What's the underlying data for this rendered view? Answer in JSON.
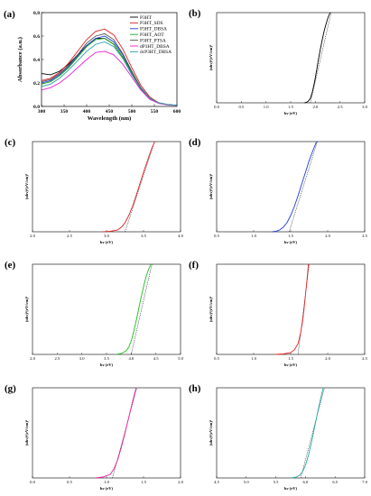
{
  "chart_data": [
    {
      "panel": "(a)",
      "type": "line",
      "xlabel": "Wavelength (nm)",
      "ylabel": "Absorbance (a.u.)",
      "xlim": [
        300,
        600
      ],
      "ylim": [
        0.0,
        0.8
      ],
      "xticks": [
        300,
        350,
        400,
        450,
        500,
        550,
        600
      ],
      "yticks": [
        0.0,
        0.2,
        0.4,
        0.6,
        0.8
      ],
      "legend_position": "top-right",
      "series": [
        {
          "name": "P3HT",
          "color": "#000000",
          "x": [
            300,
            320,
            340,
            360,
            380,
            400,
            420,
            440,
            460,
            480,
            500,
            520,
            540,
            560,
            580,
            600
          ],
          "y": [
            0.28,
            0.27,
            0.3,
            0.36,
            0.44,
            0.52,
            0.58,
            0.58,
            0.53,
            0.42,
            0.28,
            0.15,
            0.07,
            0.03,
            0.015,
            0.01
          ]
        },
        {
          "name": "P3HT_SDS",
          "color": "#e02020",
          "x": [
            300,
            320,
            340,
            360,
            380,
            400,
            420,
            440,
            460,
            480,
            500,
            520,
            540,
            560,
            580,
            600
          ],
          "y": [
            0.22,
            0.24,
            0.29,
            0.37,
            0.47,
            0.57,
            0.64,
            0.66,
            0.61,
            0.49,
            0.33,
            0.18,
            0.08,
            0.03,
            0.015,
            0.01
          ]
        },
        {
          "name": "P3HT_DBSA",
          "color": "#1f3bd6",
          "x": [
            300,
            320,
            340,
            360,
            380,
            400,
            420,
            440,
            460,
            480,
            500,
            520,
            540,
            560,
            580,
            600
          ],
          "y": [
            0.2,
            0.22,
            0.27,
            0.34,
            0.43,
            0.52,
            0.58,
            0.6,
            0.55,
            0.44,
            0.29,
            0.16,
            0.07,
            0.03,
            0.015,
            0.01
          ]
        },
        {
          "name": "P3HT_AOT",
          "color": "#18a818",
          "x": [
            300,
            320,
            340,
            360,
            380,
            400,
            420,
            440,
            460,
            480,
            500,
            520,
            540,
            560,
            580,
            600
          ],
          "y": [
            0.19,
            0.21,
            0.26,
            0.33,
            0.42,
            0.51,
            0.57,
            0.58,
            0.53,
            0.42,
            0.28,
            0.15,
            0.07,
            0.03,
            0.015,
            0.01
          ]
        },
        {
          "name": "P3HT_PTSA",
          "color": "#555555",
          "x": [
            300,
            320,
            340,
            360,
            380,
            400,
            420,
            440,
            460,
            480,
            500,
            520,
            540,
            560,
            580,
            600
          ],
          "y": [
            0.21,
            0.23,
            0.28,
            0.35,
            0.44,
            0.54,
            0.6,
            0.62,
            0.57,
            0.45,
            0.3,
            0.16,
            0.07,
            0.03,
            0.015,
            0.01
          ]
        },
        {
          "name": "dP3HT_DBSA",
          "color": "#e81dd0",
          "x": [
            300,
            320,
            340,
            360,
            380,
            400,
            420,
            440,
            460,
            480,
            500,
            520,
            540,
            560,
            580,
            600
          ],
          "y": [
            0.14,
            0.16,
            0.2,
            0.26,
            0.33,
            0.4,
            0.46,
            0.47,
            0.44,
            0.36,
            0.25,
            0.14,
            0.06,
            0.025,
            0.012,
            0.008
          ]
        },
        {
          "name": "dcP3HT_DBSA",
          "color": "#2a9ea8",
          "x": [
            300,
            320,
            340,
            360,
            380,
            400,
            420,
            440,
            460,
            480,
            500,
            520,
            540,
            560,
            580,
            600
          ],
          "y": [
            0.17,
            0.19,
            0.24,
            0.31,
            0.39,
            0.47,
            0.53,
            0.55,
            0.51,
            0.41,
            0.27,
            0.15,
            0.07,
            0.03,
            0.015,
            0.01
          ]
        }
      ]
    },
    {
      "panel": "(b)",
      "type": "line",
      "color": "#000000",
      "xlabel": "hν (eV)",
      "ylabel": "(αhν)²(eV/cm)²",
      "xlim": [
        0.0,
        3.0
      ],
      "xticks": [
        "0.0",
        "0.5",
        "1.0",
        "1.5",
        "2.0",
        "2.5",
        "3.0"
      ],
      "curve": {
        "x": [
          1.78,
          1.82,
          1.86,
          1.9,
          1.94,
          1.98,
          2.02,
          2.06,
          2.1,
          2.14,
          2.18,
          2.22,
          2.26,
          2.3
        ],
        "y": [
          0.0,
          0.005,
          0.02,
          0.05,
          0.12,
          0.22,
          0.34,
          0.47,
          0.59,
          0.7,
          0.8,
          0.88,
          0.95,
          1.0
        ]
      },
      "tangent": {
        "x": [
          1.9,
          2.32
        ],
        "y": [
          0.0,
          1.0
        ]
      }
    },
    {
      "panel": "(c)",
      "type": "line",
      "color": "#e02020",
      "xlabel": "hν (eV)",
      "ylabel": "(αhν)²(eV/cm)²",
      "xlim": [
        2.0,
        4.0
      ],
      "xticks": [
        "2.0",
        "2.5",
        "3.0",
        "3.5",
        "4.0"
      ],
      "curve": {
        "x": [
          2.95,
          3.05,
          3.15,
          3.2,
          3.25,
          3.3,
          3.35,
          3.4,
          3.45,
          3.5,
          3.55,
          3.6,
          3.65
        ],
        "y": [
          0.0,
          0.005,
          0.02,
          0.05,
          0.1,
          0.18,
          0.28,
          0.4,
          0.53,
          0.66,
          0.78,
          0.9,
          1.0
        ]
      },
      "tangent": {
        "x": [
          3.25,
          3.65
        ],
        "y": [
          0.0,
          1.0
        ]
      }
    },
    {
      "panel": "(d)",
      "type": "line",
      "color": "#1f3bd6",
      "xlabel": "hν (eV)",
      "ylabel": "(αhν)²(eV/cm)²",
      "xlim": [
        0.5,
        2.5
      ],
      "xticks": [
        "0.5",
        "1.0",
        "1.5",
        "2.0",
        "2.5"
      ],
      "curve": {
        "x": [
          1.25,
          1.3,
          1.35,
          1.4,
          1.45,
          1.5,
          1.55,
          1.6,
          1.65,
          1.7,
          1.75,
          1.8,
          1.85
        ],
        "y": [
          0.0,
          0.005,
          0.02,
          0.05,
          0.1,
          0.18,
          0.28,
          0.4,
          0.53,
          0.66,
          0.79,
          0.9,
          1.0
        ]
      },
      "tangent": {
        "x": [
          1.48,
          1.86
        ],
        "y": [
          0.0,
          1.0
        ]
      }
    },
    {
      "panel": "(e)",
      "type": "line",
      "color": "#18c018",
      "xlabel": "hν (eV)",
      "ylabel": "(αhν)²(eV/cm)²",
      "xlim": [
        2.0,
        5.0
      ],
      "xticks": [
        "2.0",
        "2.5",
        "3.0",
        "3.5",
        "4.0",
        "4.5",
        "5.0"
      ],
      "curve": {
        "x": [
          3.7,
          3.8,
          3.9,
          3.95,
          4.0,
          4.05,
          4.1,
          4.15,
          4.2,
          4.25,
          4.3,
          4.35,
          4.4
        ],
        "y": [
          0.0,
          0.01,
          0.04,
          0.08,
          0.15,
          0.25,
          0.37,
          0.5,
          0.63,
          0.75,
          0.86,
          0.94,
          1.0
        ]
      },
      "tangent": {
        "x": [
          4.0,
          4.42
        ],
        "y": [
          0.0,
          1.0
        ]
      }
    },
    {
      "panel": "(f)",
      "type": "line",
      "color": "#e02020",
      "xlabel": "hν (eV)",
      "ylabel": "(αhν)²(eV/cm)²",
      "xlim": [
        0.5,
        2.5
      ],
      "xticks": [
        "0.5",
        "1.0",
        "1.5",
        "2.0",
        "2.5"
      ],
      "curve": {
        "x": [
          1.3,
          1.4,
          1.5,
          1.55,
          1.6,
          1.63,
          1.66,
          1.68,
          1.7,
          1.72,
          1.74
        ],
        "y": [
          0.0,
          0.005,
          0.02,
          0.05,
          0.12,
          0.22,
          0.36,
          0.5,
          0.66,
          0.82,
          1.0
        ]
      },
      "tangent": {
        "x": [
          1.6,
          1.75
        ],
        "y": [
          0.0,
          1.0
        ]
      }
    },
    {
      "panel": "(g)",
      "type": "line",
      "color": "#e81d9a",
      "xlabel": "hν (eV)",
      "ylabel": "(αhν)²(eV/cm)²",
      "xlim": [
        0.0,
        2.0
      ],
      "xticks": [
        "0.0",
        "0.5",
        "1.0",
        "1.5",
        "2.0"
      ],
      "curve": {
        "x": [
          0.85,
          0.95,
          1.05,
          1.1,
          1.15,
          1.2,
          1.25,
          1.3,
          1.35,
          1.4
        ],
        "y": [
          0.0,
          0.01,
          0.04,
          0.1,
          0.2,
          0.34,
          0.5,
          0.67,
          0.84,
          1.0
        ]
      },
      "tangent": {
        "x": [
          1.08,
          1.41
        ],
        "y": [
          0.0,
          1.0
        ]
      }
    },
    {
      "panel": "(h)",
      "type": "line",
      "color": "#2aa8a0",
      "xlabel": "hν (eV)",
      "ylabel": "(αhν)²(eV/cm)²",
      "xlim": [
        4.5,
        7.0
      ],
      "xticks": [
        "4.5",
        "5.0",
        "5.5",
        "6.0",
        "6.5",
        "7.0"
      ],
      "curve": {
        "x": [
          5.75,
          5.85,
          5.9,
          5.95,
          6.0,
          6.05,
          6.1,
          6.15,
          6.2,
          6.25,
          6.3
        ],
        "y": [
          0.0,
          0.01,
          0.03,
          0.07,
          0.14,
          0.25,
          0.39,
          0.55,
          0.71,
          0.86,
          1.0
        ]
      },
      "tangent": {
        "x": [
          5.92,
          6.32
        ],
        "y": [
          0.0,
          1.0
        ]
      }
    }
  ]
}
